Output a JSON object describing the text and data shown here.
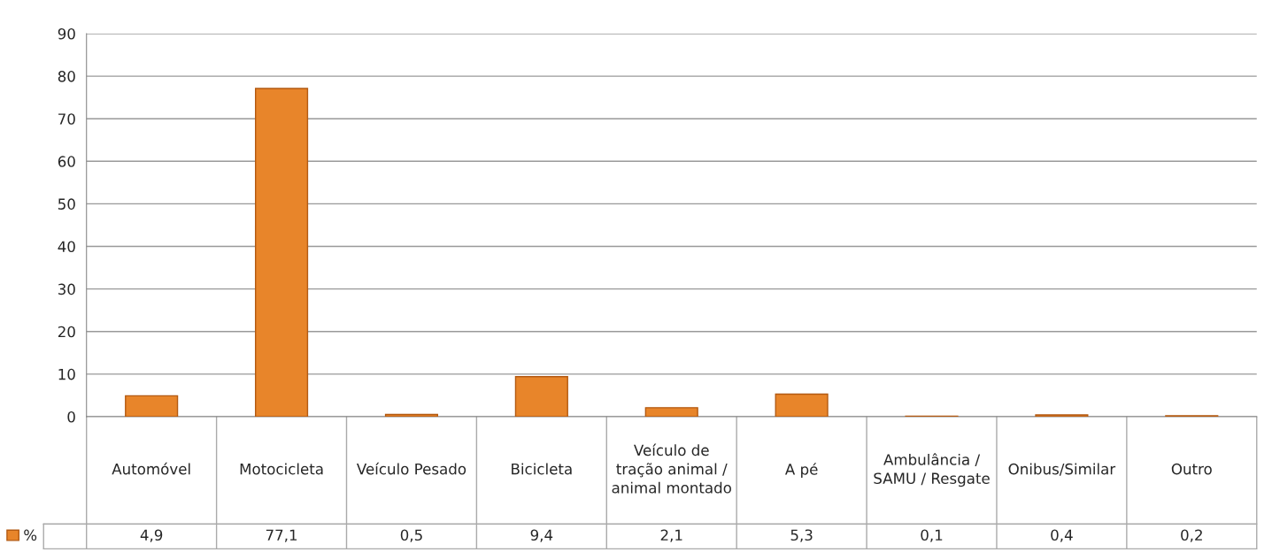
{
  "chart_data": {
    "type": "bar",
    "categories": [
      "Automóvel",
      "Motocicleta",
      "Veículo Pesado",
      "Bicicleta",
      "Veículo de tração animal / animal montado",
      "A pé",
      "Ambulância / SAMU / Resgate",
      "Onibus/Similar",
      "Outro"
    ],
    "series": [
      {
        "name": "%",
        "color": "#e8852a",
        "values": [
          4.9,
          77.1,
          0.5,
          9.4,
          2.1,
          5.3,
          0.1,
          0.4,
          0.2
        ],
        "value_labels": [
          "4,9",
          "77,1",
          "0,5",
          "9,4",
          "2,1",
          "5,3",
          "0,1",
          "0,4",
          "0,2"
        ]
      }
    ],
    "ylim": [
      0,
      90
    ],
    "yticks": [
      0,
      10,
      20,
      30,
      40,
      50,
      60,
      70,
      80,
      90
    ],
    "grid": "y",
    "legend": "bottom"
  }
}
